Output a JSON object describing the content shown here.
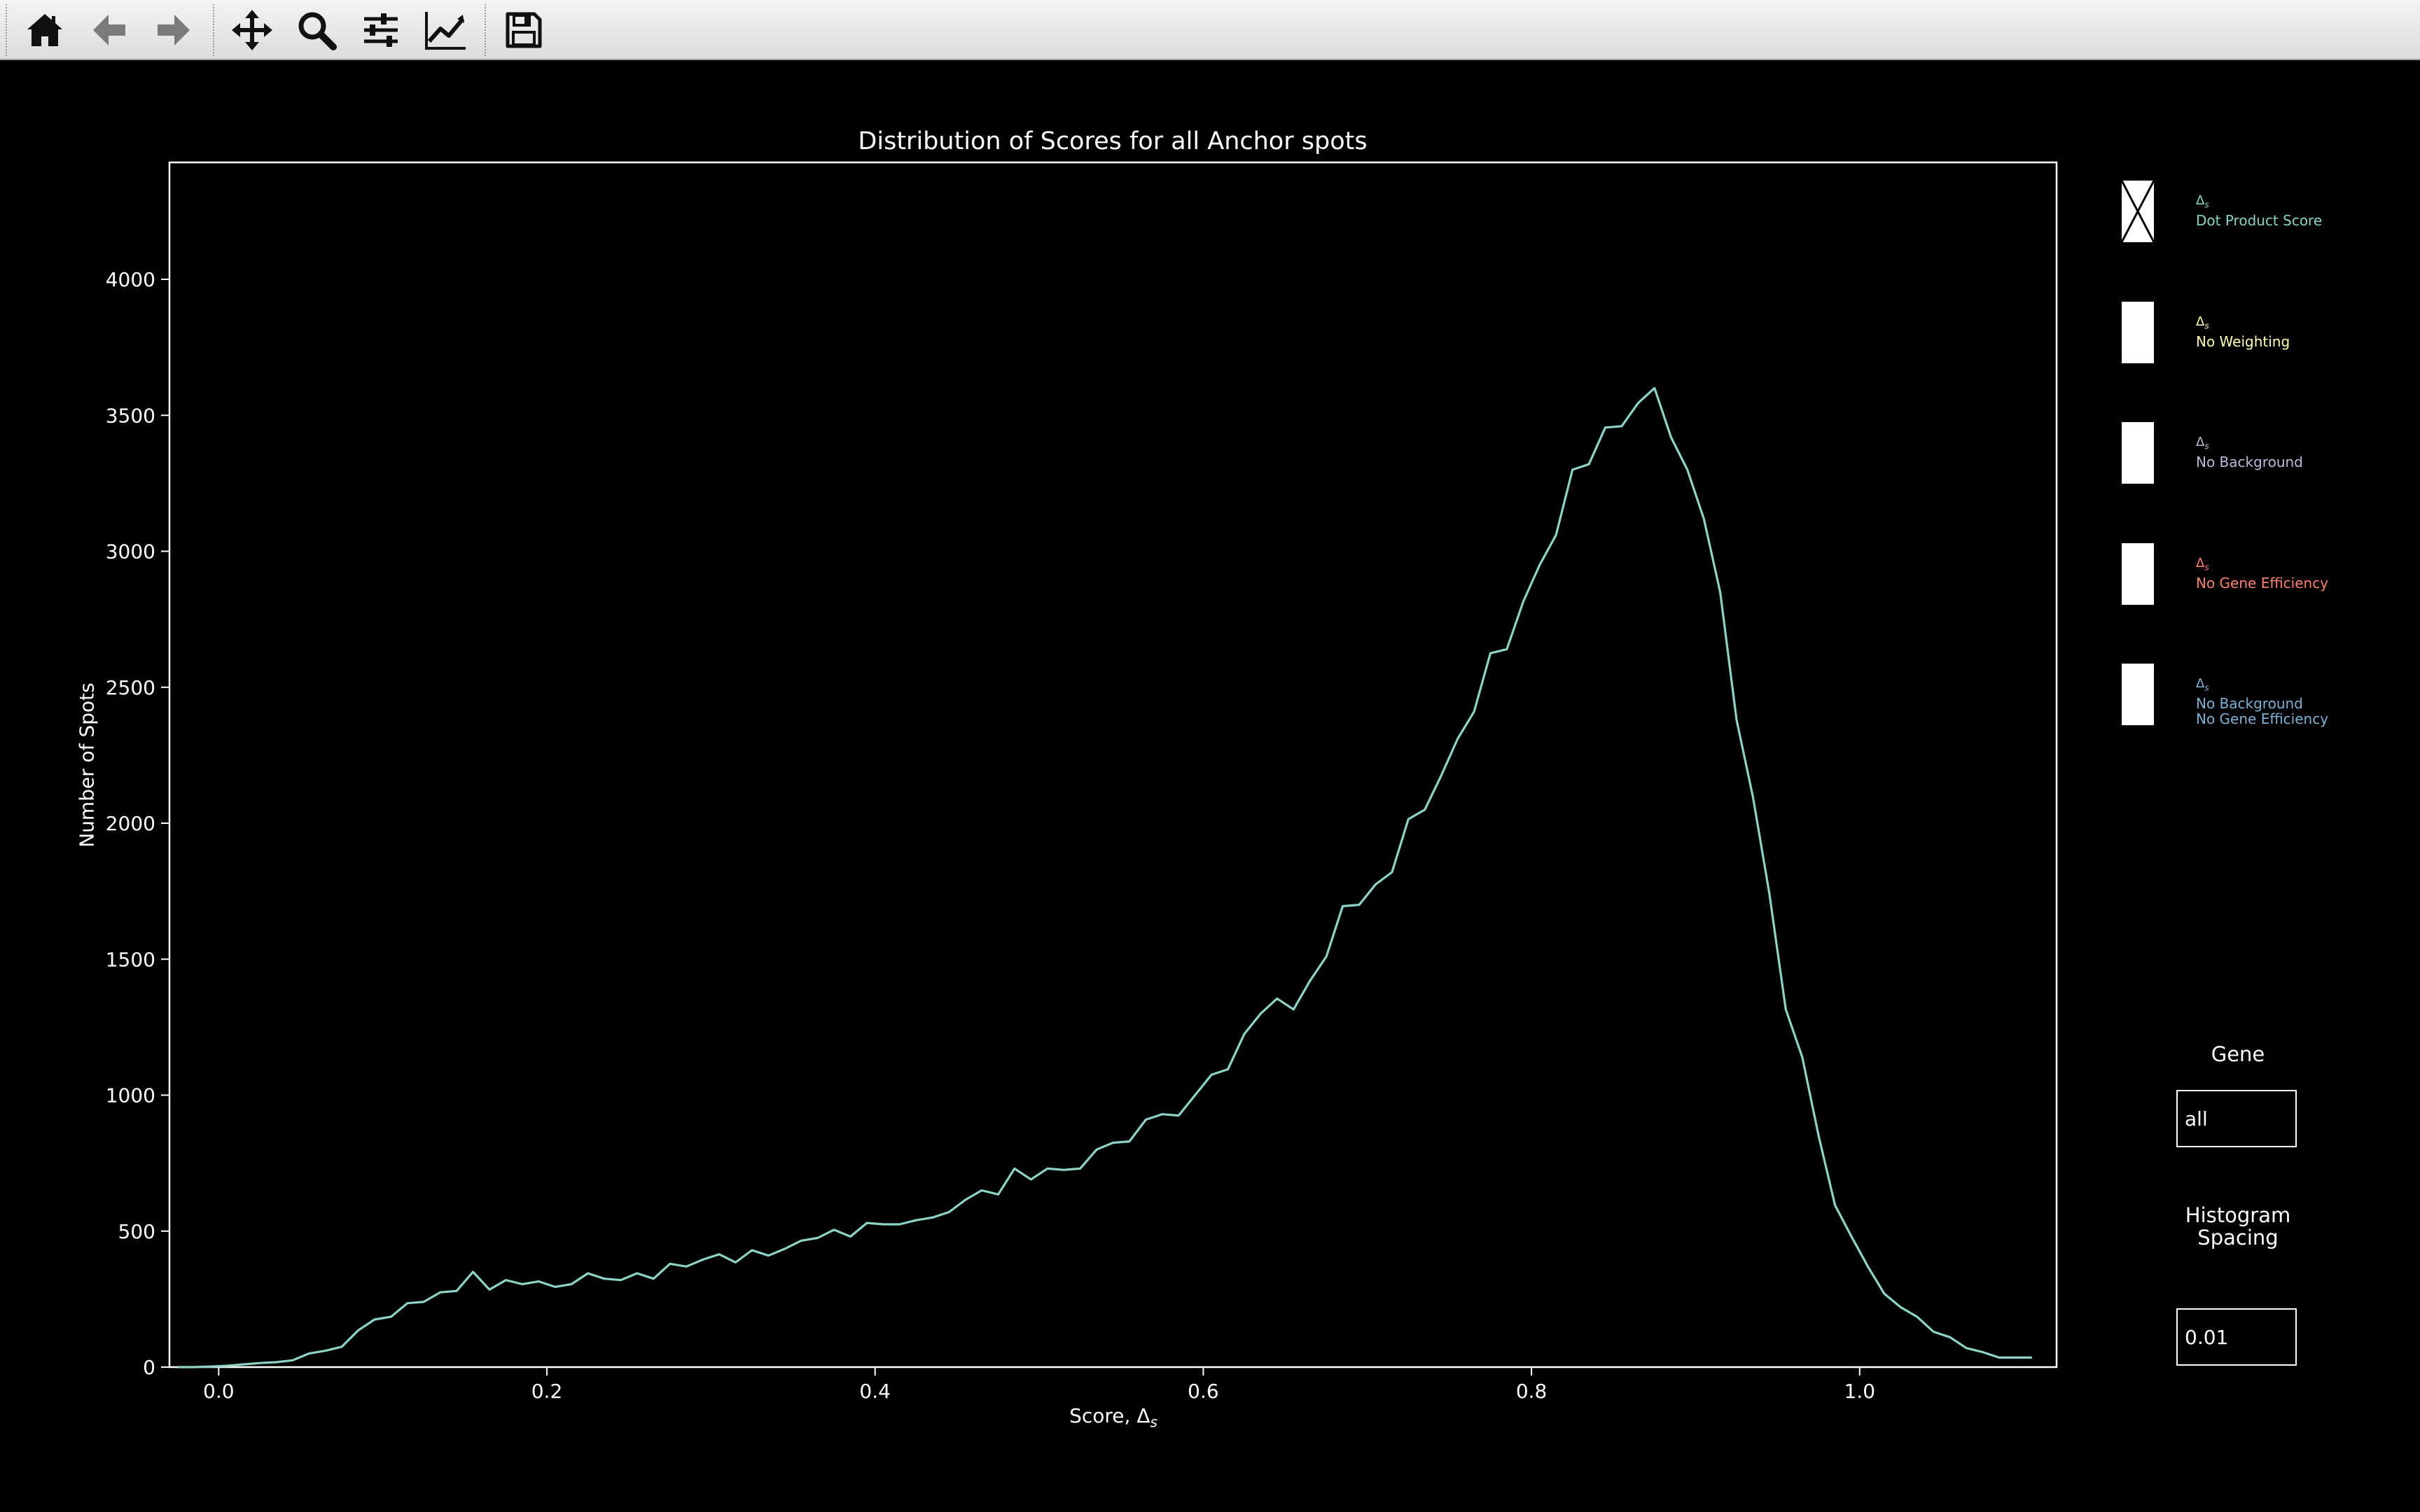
{
  "toolbar": {
    "buttons": [
      {
        "name": "home-icon",
        "tooltip": "Home"
      },
      {
        "name": "back-arrow-icon",
        "tooltip": "Back"
      },
      {
        "name": "forward-arrow-icon",
        "tooltip": "Forward"
      },
      {
        "name": "pan-move-icon",
        "tooltip": "Pan"
      },
      {
        "name": "zoom-magnifier-icon",
        "tooltip": "Zoom"
      },
      {
        "name": "configure-subplots-icon",
        "tooltip": "Subplots"
      },
      {
        "name": "edit-axis-icon",
        "tooltip": "Customize"
      },
      {
        "name": "save-floppy-icon",
        "tooltip": "Save"
      }
    ]
  },
  "chart_data": {
    "type": "line",
    "title": "Distribution of Scores for all Anchor spots",
    "xlabel": "Score, Δ",
    "xlabel_subscript": "s",
    "ylabel": "Number of Spots",
    "xlim": [
      -0.03,
      1.12
    ],
    "ylim": [
      0,
      4430
    ],
    "xticks": [
      0.0,
      0.2,
      0.4,
      0.6,
      0.8,
      1.0
    ],
    "xtick_labels": [
      "0.0",
      "0.2",
      "0.4",
      "0.6",
      "0.8",
      "1.0"
    ],
    "yticks": [
      0,
      500,
      1000,
      1500,
      2000,
      2500,
      3000,
      3500,
      4000
    ],
    "ytick_labels": [
      "0",
      "500",
      "1000",
      "1500",
      "2000",
      "2500",
      "3000",
      "3500",
      "4000"
    ],
    "grid": false,
    "series": [
      {
        "color": "#8dd3c7",
        "x": [
          -0.025,
          -0.015,
          -0.005,
          0.005,
          0.015,
          0.025,
          0.035,
          0.045,
          0.055,
          0.065,
          0.075,
          0.085,
          0.095,
          0.105,
          0.115,
          0.125,
          0.135,
          0.145,
          0.155,
          0.165,
          0.175,
          0.185,
          0.195,
          0.205,
          0.215,
          0.225,
          0.235,
          0.245,
          0.255,
          0.265,
          0.275,
          0.285,
          0.295,
          0.305,
          0.315,
          0.325,
          0.335,
          0.345,
          0.355,
          0.365,
          0.375,
          0.385,
          0.395,
          0.405,
          0.415,
          0.425,
          0.435,
          0.445,
          0.455,
          0.465,
          0.475,
          0.485,
          0.495,
          0.505,
          0.515,
          0.525,
          0.535,
          0.545,
          0.555,
          0.565,
          0.575,
          0.585,
          0.595,
          0.605,
          0.615,
          0.625,
          0.635,
          0.645,
          0.655,
          0.665,
          0.675,
          0.685,
          0.695,
          0.705,
          0.715,
          0.725,
          0.735,
          0.745,
          0.755,
          0.765,
          0.775,
          0.785,
          0.795,
          0.805,
          0.815,
          0.825,
          0.835,
          0.845,
          0.855,
          0.865,
          0.875,
          0.885,
          0.895,
          0.905,
          0.915,
          0.925,
          0.935,
          0.945,
          0.955,
          0.965,
          0.975,
          0.985,
          0.995,
          1.005,
          1.015,
          1.025,
          1.035,
          1.045,
          1.055,
          1.065,
          1.075,
          1.085,
          1.095,
          1.105
        ],
        "y": [
          0,
          0,
          2,
          5,
          10,
          15,
          18,
          25,
          50,
          60,
          75,
          135,
          175,
          185,
          235,
          240,
          275,
          280,
          350,
          285,
          320,
          305,
          315,
          295,
          305,
          345,
          325,
          320,
          345,
          325,
          380,
          370,
          395,
          415,
          385,
          430,
          410,
          435,
          465,
          475,
          505,
          480,
          530,
          525,
          525,
          540,
          550,
          570,
          615,
          650,
          635,
          730,
          690,
          730,
          725,
          730,
          800,
          825,
          830,
          910,
          930,
          925,
          1000,
          1075,
          1095,
          1225,
          1300,
          1355,
          1315,
          1420,
          1510,
          1695,
          1700,
          1775,
          1820,
          2015,
          2050,
          2175,
          2310,
          2410,
          2625,
          2640,
          2815,
          2950,
          3060,
          3300,
          3320,
          3455,
          3460,
          3545,
          3600,
          3420,
          3300,
          3120,
          2850,
          2380,
          2095,
          1740,
          1315,
          1140,
          850,
          595,
          480,
          370,
          270,
          220,
          185,
          130,
          110,
          70,
          55,
          35,
          35,
          35
        ]
      }
    ]
  },
  "legend": {
    "items": [
      {
        "delta": "Δ",
        "sub": "s",
        "name": "Dot Product Score",
        "color": "#8dd3c7",
        "checked": true
      },
      {
        "delta": "Δ",
        "sub": "s",
        "name": "No Weighting",
        "color": "#ffffb3",
        "checked": false
      },
      {
        "delta": "Δ",
        "sub": "s",
        "name": "No Background",
        "color": "#bebada",
        "checked": false
      },
      {
        "delta": "Δ",
        "sub": "s",
        "name": "No Gene Efficiency",
        "color": "#fb8072",
        "checked": false
      },
      {
        "delta": "Δ",
        "sub": "s",
        "name": "No Background",
        "name2": "No Gene Efficiency",
        "color": "#80b1d3",
        "checked": false
      }
    ]
  },
  "gene": {
    "label": "Gene",
    "value": "all"
  },
  "spacing": {
    "label_line1": "Histogram",
    "label_line2": "Spacing",
    "value": "0.01"
  }
}
